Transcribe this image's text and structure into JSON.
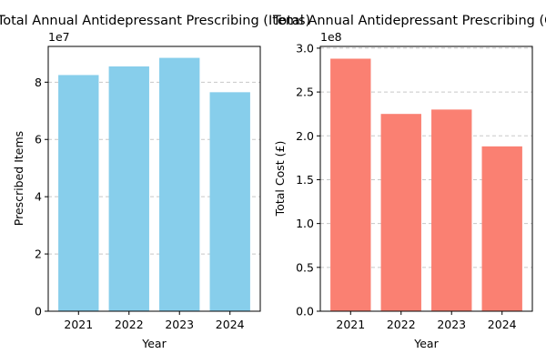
{
  "chart_data": [
    {
      "type": "bar",
      "title": "Total Annual Antidepressant Prescribing (Items)",
      "xlabel": "Year",
      "ylabel": "Prescribed Items",
      "offset_label": "1e7",
      "categories": [
        "2021",
        "2022",
        "2023",
        "2024"
      ],
      "values": [
        82500000,
        85500000,
        88500000,
        76500000
      ],
      "ylim": [
        0,
        92500000
      ],
      "yticks": [
        0,
        20000000,
        40000000,
        60000000,
        80000000
      ],
      "ytick_labels": [
        "0",
        "2",
        "4",
        "6",
        "8"
      ],
      "grid": "y-dashed",
      "color": "#87ceeb"
    },
    {
      "type": "bar",
      "title": "Total Annual Antidepressant Prescribing (Cost)",
      "xlabel": "Year",
      "ylabel": "Total Cost (£)",
      "offset_label": "1e8",
      "categories": [
        "2021",
        "2022",
        "2023",
        "2024"
      ],
      "values": [
        288000000,
        225000000,
        230000000,
        188000000
      ],
      "ylim": [
        0,
        302000000
      ],
      "yticks": [
        0,
        50000000,
        100000000,
        150000000,
        200000000,
        250000000,
        300000000
      ],
      "ytick_labels": [
        "0.0",
        "0.5",
        "1.0",
        "1.5",
        "2.0",
        "2.5",
        "3.0"
      ],
      "grid": "y-dashed",
      "color": "#fa8072"
    }
  ]
}
